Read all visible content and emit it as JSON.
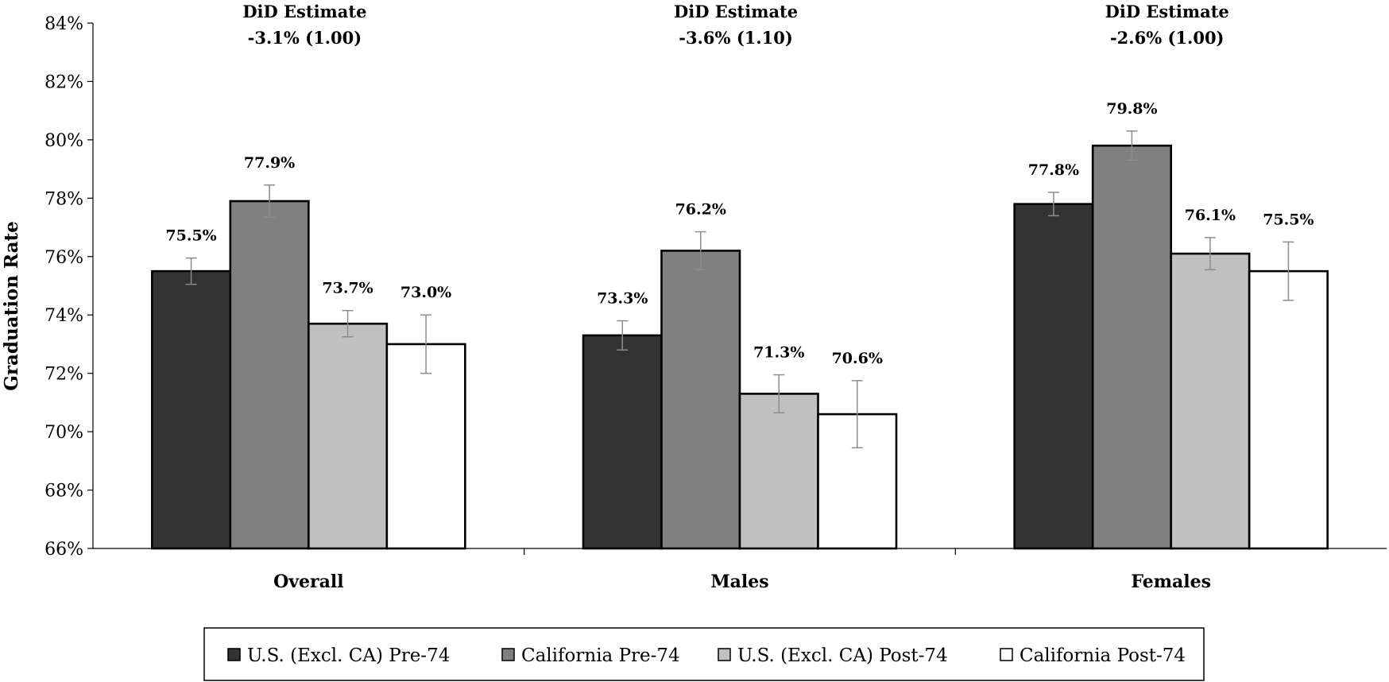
{
  "chart_data": {
    "type": "bar",
    "ylabel": "Graduation Rate",
    "xlabel": "",
    "ylim": [
      66,
      84
    ],
    "yticks": [
      "66%",
      "68%",
      "70%",
      "72%",
      "74%",
      "76%",
      "78%",
      "80%",
      "82%",
      "84%"
    ],
    "ytick_values": [
      66,
      68,
      70,
      72,
      74,
      76,
      78,
      80,
      82,
      84
    ],
    "grid": false,
    "legend_position": "bottom",
    "categories": [
      "Overall",
      "Males",
      "Females"
    ],
    "series": [
      {
        "name": "U.S. (Excl. CA) Pre-74",
        "color": "#333333",
        "values": [
          75.5,
          73.3,
          77.8
        ],
        "labels": [
          "75.5%",
          "73.3%",
          "77.8%"
        ],
        "error": [
          0.45,
          0.5,
          0.4
        ]
      },
      {
        "name": "California Pre-74",
        "color": "#808080",
        "values": [
          77.9,
          76.2,
          79.8
        ],
        "labels": [
          "77.9%",
          "76.2%",
          "79.8%"
        ],
        "error": [
          0.55,
          0.65,
          0.5
        ]
      },
      {
        "name": "U.S. (Excl. CA) Post-74",
        "color": "#c0c0c0",
        "values": [
          73.7,
          71.3,
          76.1
        ],
        "labels": [
          "73.7%",
          "71.3%",
          "76.1%"
        ],
        "error": [
          0.45,
          0.65,
          0.55
        ]
      },
      {
        "name": "California Post-74",
        "color": "#ffffff",
        "values": [
          73.0,
          70.6,
          75.5
        ],
        "labels": [
          "73.0%",
          "70.6%",
          "75.5%"
        ],
        "error": [
          1.0,
          1.15,
          1.0
        ]
      }
    ],
    "annotations": [
      {
        "category": "Overall",
        "line1": "DiD Estimate",
        "line2": "-3.1% (1.00)"
      },
      {
        "category": "Males",
        "line1": "DiD Estimate",
        "line2": "-3.6% (1.10)"
      },
      {
        "category": "Females",
        "line1": "DiD Estimate",
        "line2": "-2.6% (1.00)"
      }
    ]
  }
}
